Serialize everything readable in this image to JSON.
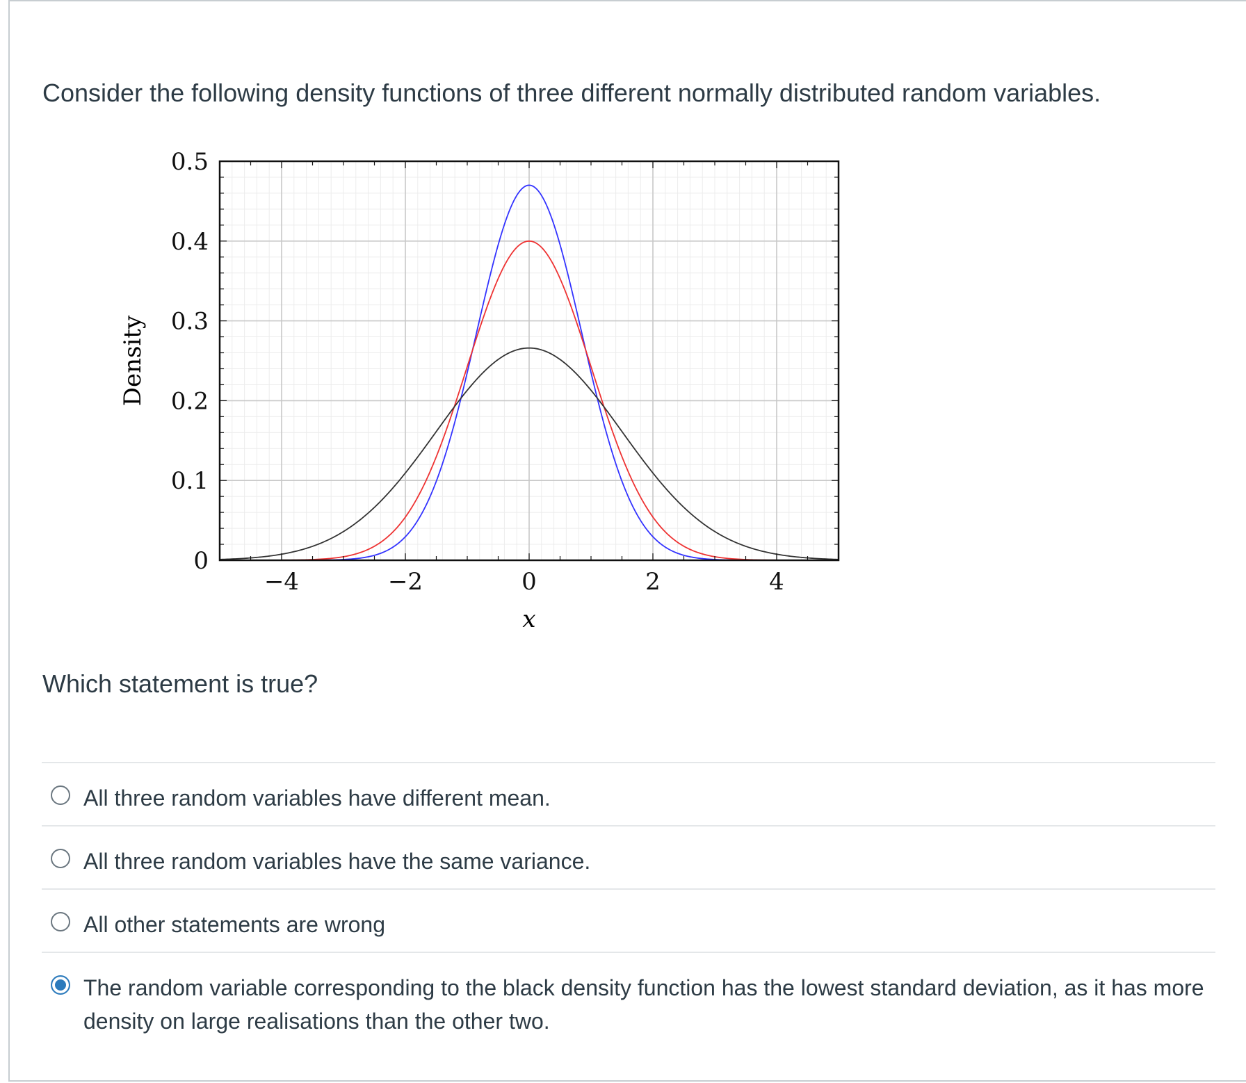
{
  "question": {
    "text": "Consider the following density functions of three different normally distributed random variables.",
    "prompt": "Which statement is true?"
  },
  "answers": [
    {
      "label": "All three random variables have different mean.",
      "selected": false
    },
    {
      "label": "All three random variables have the same variance.",
      "selected": false
    },
    {
      "label": "All other statements are wrong",
      "selected": false
    },
    {
      "label": "The random variable corresponding to the black density function has the lowest standard deviation, as it has more density on large realisations than the other two.",
      "selected": true
    }
  ],
  "chart_data": {
    "type": "line",
    "xlabel": "x",
    "ylabel": "Density",
    "xlim": [
      -5,
      5
    ],
    "ylim": [
      0,
      0.5
    ],
    "x_ticks": [
      "−4",
      "−2",
      "0",
      "2",
      "4"
    ],
    "y_ticks": [
      "0",
      "0.1",
      "0.2",
      "0.3",
      "0.4",
      "0.5"
    ],
    "grid": true,
    "series": [
      {
        "color": "#3333ff",
        "distribution": "normal",
        "mean": 0,
        "std": 0.85,
        "peak": 0.47
      },
      {
        "color": "#ee3333",
        "distribution": "normal",
        "mean": 0,
        "std": 1.0,
        "peak": 0.4
      },
      {
        "color": "#333333",
        "distribution": "normal",
        "mean": 0,
        "std": 1.5,
        "peak": 0.266
      }
    ]
  }
}
